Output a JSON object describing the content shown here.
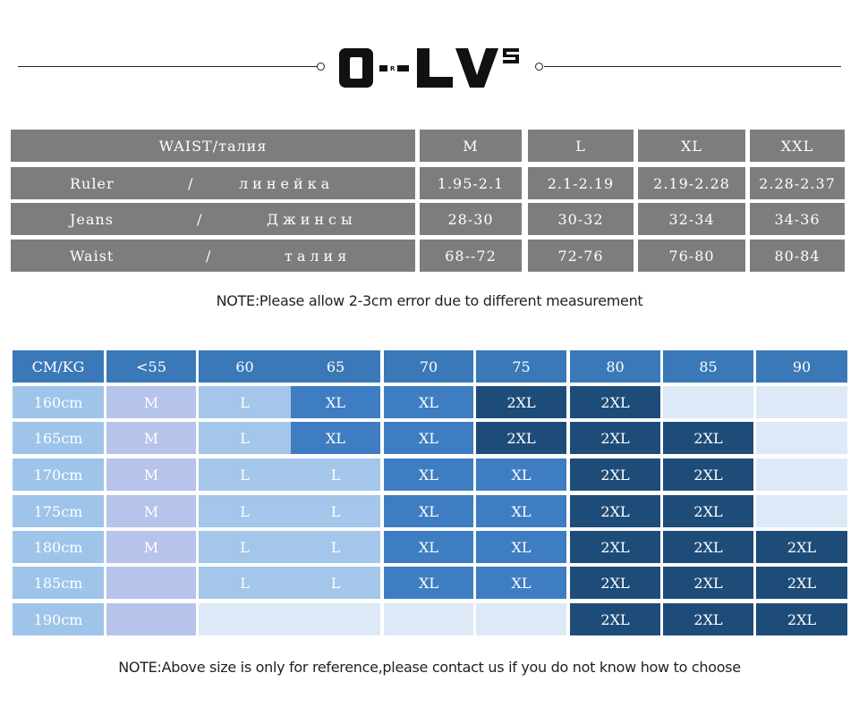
{
  "brand": {
    "logo_text": "O-LVS"
  },
  "waist_table": {
    "header": {
      "label": "WAIST/талия",
      "sizes": [
        "M",
        "L",
        "XL",
        "XXL"
      ]
    },
    "rows": [
      {
        "left": "Ruler",
        "sep": "/",
        "right": "линейка",
        "values": [
          "1.95-2.1",
          "2.1-2.19",
          "2.19-2.28",
          "2.28-2.37"
        ]
      },
      {
        "left": "Jeans",
        "sep": "/",
        "right": "Джинсы",
        "values": [
          "28-30",
          "30-32",
          "32-34",
          "34-36"
        ]
      },
      {
        "left": "Waist",
        "sep": "/",
        "right": "талия",
        "values": [
          "68--72",
          "72-76",
          "76-80",
          "80-84"
        ]
      }
    ]
  },
  "note1": "NOTE:Please allow 2-3cm error due to different measurement",
  "height_weight_table": {
    "corner": "CM/KG",
    "weights": [
      "<55",
      "60",
      "65",
      "70",
      "75",
      "80",
      "85",
      "90"
    ],
    "rows": [
      {
        "height": "160cm",
        "cells": [
          "M",
          "L",
          "XL",
          "XL",
          "2XL",
          "2XL",
          "",
          ""
        ]
      },
      {
        "height": "165cm",
        "cells": [
          "M",
          "L",
          "XL",
          "XL",
          "2XL",
          "2XL",
          "2XL",
          ""
        ]
      },
      {
        "height": "170cm",
        "cells": [
          "M",
          "L",
          "L",
          "XL",
          "XL",
          "2XL",
          "2XL",
          ""
        ]
      },
      {
        "height": "175cm",
        "cells": [
          "M",
          "L",
          "L",
          "XL",
          "XL",
          "2XL",
          "2XL",
          ""
        ]
      },
      {
        "height": "180cm",
        "cells": [
          "M",
          "L",
          "L",
          "XL",
          "XL",
          "2XL",
          "2XL",
          "2XL"
        ]
      },
      {
        "height": "185cm",
        "cells": [
          "",
          "L",
          "L",
          "XL",
          "XL",
          "2XL",
          "2XL",
          "2XL"
        ]
      },
      {
        "height": "190cm",
        "cells": [
          "",
          "",
          "",
          "",
          "",
          "2XL",
          "2XL",
          "2XL"
        ]
      }
    ],
    "colors": {
      "header": "#3a78b8",
      "height_col": "#9ec4ea",
      "M": "#b6c3ea",
      "L": "#a4c6ea",
      "XL": "#3e7dc1",
      "2XL": "#1e4c78",
      "empty": "#dde9f7"
    }
  },
  "note2": "NOTE:Above size is only for reference,please contact us if you do not know how to choose"
}
